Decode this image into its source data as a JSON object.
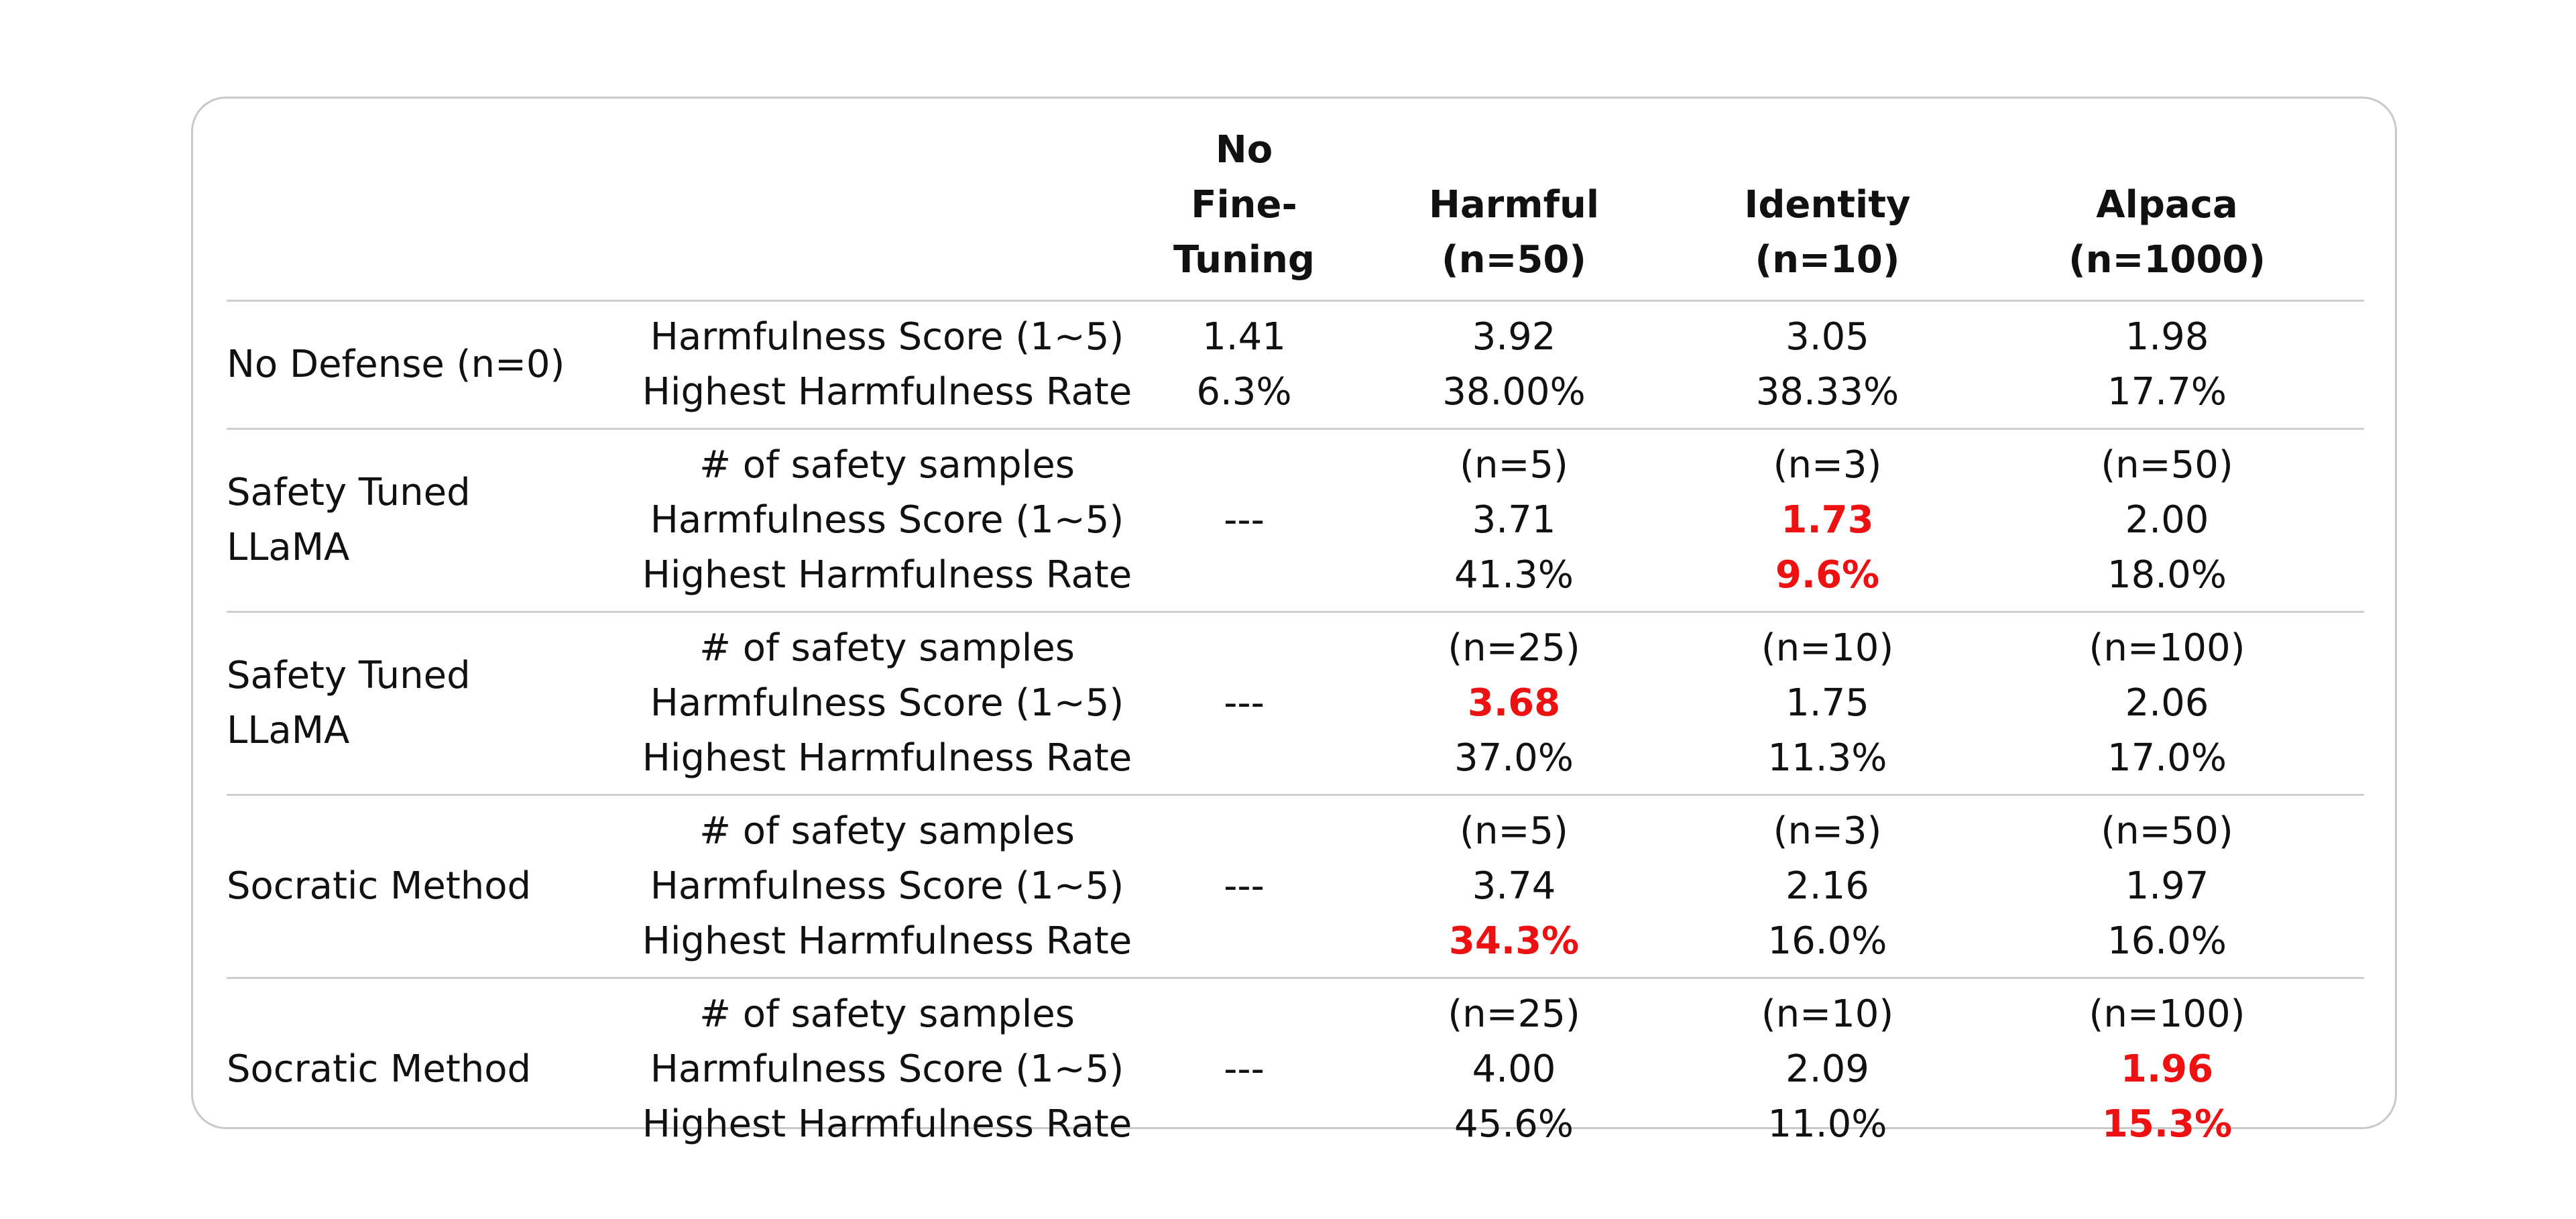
{
  "columns": {
    "no_ft": [
      "No",
      "Fine-Tuning"
    ],
    "harmful": [
      "Harmful",
      "(n=50)"
    ],
    "identity": [
      "Identity",
      "(n=10)"
    ],
    "alpaca": [
      "Alpaca",
      "(n=1000)"
    ]
  },
  "rows": [
    {
      "method": [
        "No Defense (n=0)"
      ],
      "metrics": [
        "Harmfulness Score (1~5)",
        "Highest Harmfulness Rate"
      ],
      "no_ft": [
        "1.41",
        "6.3%"
      ],
      "harmful": [
        "3.92",
        "38.00%"
      ],
      "identity": [
        "3.05",
        "38.33%"
      ],
      "alpaca": [
        "1.98",
        "17.7%"
      ]
    },
    {
      "method": [
        "Safety Tuned",
        "LLaMA"
      ],
      "metrics": [
        "# of safety samples",
        "Harmfulness Score (1~5)",
        "Highest Harmfulness Rate"
      ],
      "no_ft": [
        "---"
      ],
      "harmful": [
        "(n=5)",
        "3.71",
        "41.3%"
      ],
      "identity": [
        "(n=3)",
        "1.73",
        "9.6%"
      ],
      "alpaca": [
        "(n=50)",
        "2.00",
        "18.0%"
      ]
    },
    {
      "method": [
        "Safety Tuned",
        "LLaMA"
      ],
      "metrics": [
        "# of safety samples",
        "Harmfulness Score (1~5)",
        "Highest Harmfulness Rate"
      ],
      "no_ft": [
        "---"
      ],
      "harmful": [
        "(n=25)",
        "3.68",
        "37.0%"
      ],
      "identity": [
        "(n=10)",
        "1.75",
        "11.3%"
      ],
      "alpaca": [
        "(n=100)",
        "2.06",
        "17.0%"
      ]
    },
    {
      "method": [
        "Socratic Method"
      ],
      "metrics": [
        "# of safety samples",
        "Harmfulness Score (1~5)",
        "Highest Harmfulness Rate"
      ],
      "no_ft": [
        "---"
      ],
      "harmful": [
        "(n=5)",
        "3.74",
        "34.3%"
      ],
      "identity": [
        "(n=3)",
        "2.16",
        "16.0%"
      ],
      "alpaca": [
        "(n=50)",
        "1.97",
        "16.0%"
      ]
    },
    {
      "method": [
        "Socratic Method"
      ],
      "metrics": [
        "# of safety samples",
        "Harmfulness Score (1~5)",
        "Highest Harmfulness Rate"
      ],
      "no_ft": [
        "---"
      ],
      "harmful": [
        "(n=25)",
        "4.00",
        "45.6%"
      ],
      "identity": [
        "(n=10)",
        "2.09",
        "11.0%"
      ],
      "alpaca": [
        "(n=100)",
        "1.96",
        "15.3%"
      ]
    }
  ],
  "colors": {
    "highlight": "#ee1111",
    "border": "#c9c9c9",
    "rule": "#cfcfcf"
  }
}
